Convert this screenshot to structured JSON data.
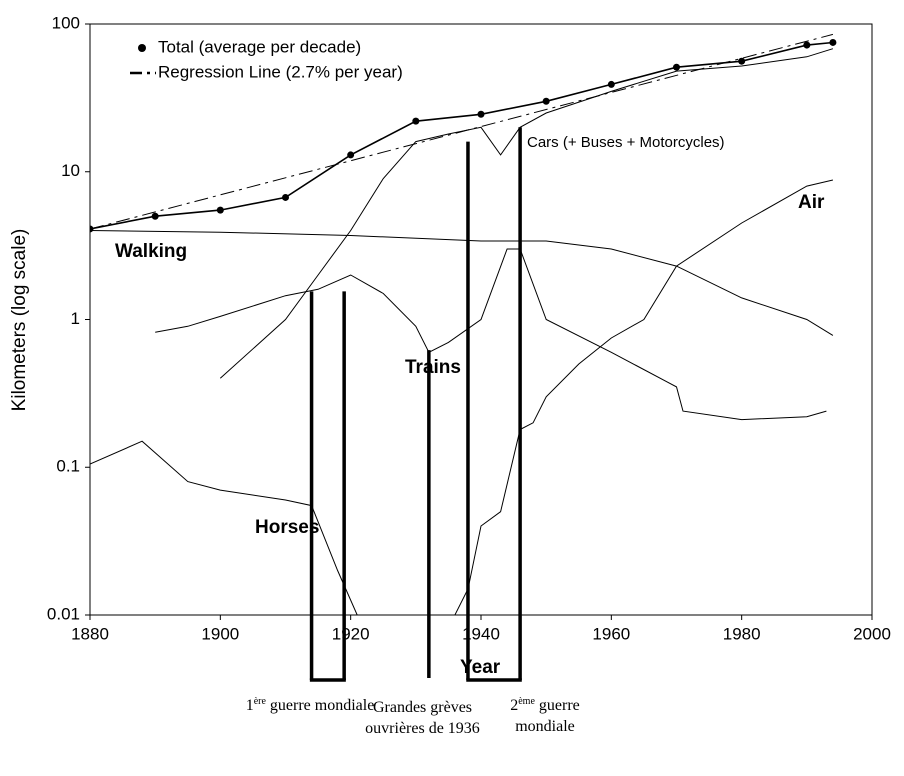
{
  "chart_data": {
    "type": "line",
    "xlabel": "Year",
    "ylabel": "Kilometers (log scale)",
    "xlim": [
      1880,
      2000
    ],
    "xticks": [
      1880,
      1900,
      1920,
      1940,
      1960,
      1980,
      2000
    ],
    "ylim": [
      0.01,
      100
    ],
    "yticks": [
      0.01,
      0.1,
      1,
      10,
      100
    ],
    "log_y": true,
    "legend": "upper left",
    "series": [
      {
        "name": "Total (average per decade)",
        "color": "#000000",
        "markers": true,
        "legend": true,
        "x": [
          1880,
          1890,
          1900,
          1910,
          1920,
          1930,
          1940,
          1950,
          1960,
          1970,
          1980,
          1990,
          1994
        ],
        "values": [
          4.1,
          5.0,
          5.5,
          6.7,
          13,
          22,
          24.5,
          30,
          39,
          51,
          56,
          72,
          75
        ]
      },
      {
        "name": "Regression Line (2.7% per year)",
        "color": "#000000",
        "dashed": true,
        "legend": true,
        "x": [
          1880,
          1994
        ],
        "values": [
          4.1,
          85
        ]
      },
      {
        "name": "Walking",
        "color": "#000000",
        "x": [
          1880,
          1900,
          1920,
          1940,
          1950,
          1960,
          1970,
          1980,
          1990,
          1994
        ],
        "values": [
          4.0,
          3.9,
          3.7,
          3.4,
          3.4,
          3.0,
          2.3,
          1.4,
          1.0,
          0.78
        ]
      },
      {
        "name": "Cars (+ Buses + Motorcycles)",
        "color": "#000000",
        "x": [
          1900,
          1910,
          1915,
          1920,
          1925,
          1930,
          1935,
          1940,
          1943,
          1946,
          1950,
          1960,
          1970,
          1980,
          1990,
          1994
        ],
        "values": [
          0.4,
          1.0,
          2.0,
          4.0,
          9,
          16,
          18,
          20,
          13,
          20,
          25,
          35,
          48,
          52,
          60,
          68
        ]
      },
      {
        "name": "Trains",
        "color": "#000000",
        "x": [
          1890,
          1895,
          1900,
          1910,
          1915,
          1920,
          1925,
          1930,
          1932,
          1935,
          1940,
          1944,
          1946,
          1950,
          1960,
          1970,
          1971,
          1980,
          1990,
          1993
        ],
        "values": [
          0.82,
          0.9,
          1.05,
          1.45,
          1.6,
          2.0,
          1.5,
          0.9,
          0.6,
          0.7,
          1.0,
          3.0,
          3.0,
          1.0,
          0.6,
          0.35,
          0.24,
          0.21,
          0.22,
          0.24
        ]
      },
      {
        "name": "Air",
        "color": "#000000",
        "x": [
          1936,
          1938,
          1940,
          1943,
          1946,
          1948,
          1950,
          1955,
          1960,
          1965,
          1970,
          1980,
          1990,
          1994
        ],
        "values": [
          0.01,
          0.015,
          0.04,
          0.05,
          0.18,
          0.2,
          0.3,
          0.5,
          0.75,
          1.0,
          2.3,
          4.5,
          8,
          8.8
        ]
      },
      {
        "name": "Horses",
        "color": "#000000",
        "x": [
          1880,
          1888,
          1895,
          1900,
          1910,
          1914,
          1918,
          1921
        ],
        "values": [
          0.105,
          0.15,
          0.08,
          0.07,
          0.06,
          0.055,
          0.02,
          0.01
        ]
      }
    ],
    "events": [
      {
        "number": "1",
        "sup": "ère",
        "text": "guerre mondiale",
        "years": [
          1914,
          1919
        ],
        "tops": [
          1.55,
          1.55
        ]
      },
      {
        "text": "Grandes grèves ouvrières de 1936",
        "years": [
          1932
        ],
        "tops": [
          0.62
        ]
      },
      {
        "number": "2",
        "sup": "ème",
        "text": "guerre mondiale",
        "years": [
          1938,
          1946
        ],
        "tops": [
          16,
          20
        ]
      }
    ]
  }
}
